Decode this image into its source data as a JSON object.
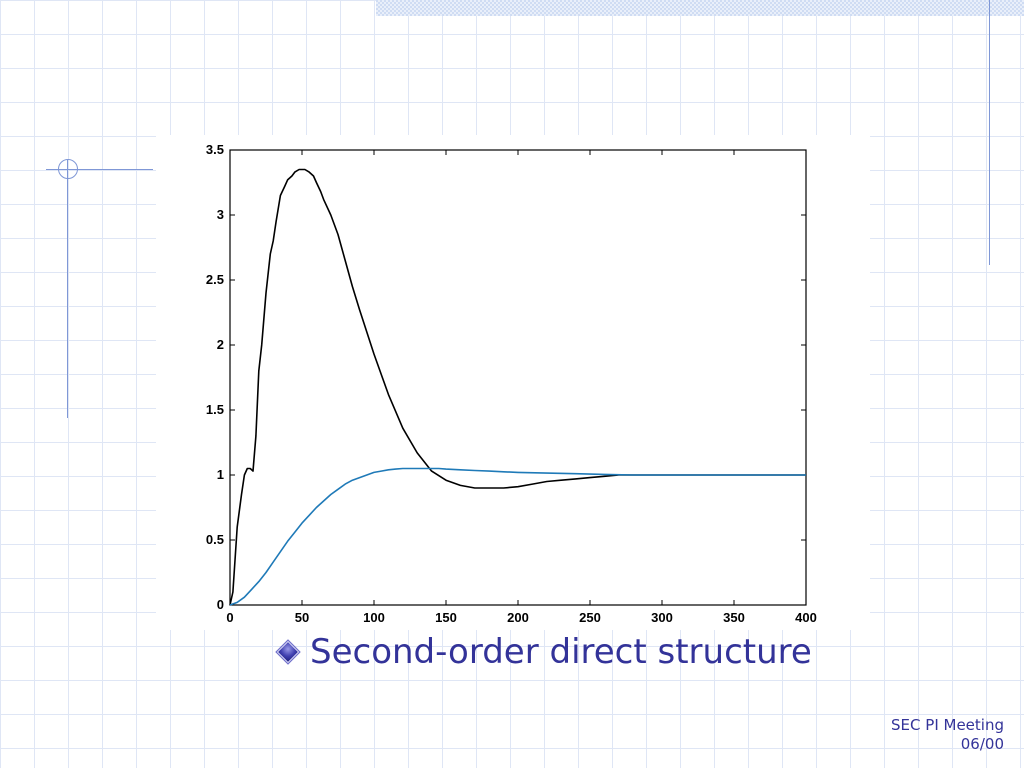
{
  "slide": {
    "bullet": "Second-order direct structure",
    "footer_line1": "SEC PI Meeting",
    "footer_line2": "06/00"
  },
  "chart_data": {
    "type": "line",
    "title": "",
    "xlabel": "",
    "ylabel": "",
    "xlim": [
      0,
      400
    ],
    "ylim": [
      0,
      3.5
    ],
    "xticks": [
      "0",
      "50",
      "100",
      "150",
      "200",
      "250",
      "300",
      "350",
      "400"
    ],
    "yticks": [
      "0",
      "0.5",
      "1",
      "1.5",
      "2",
      "2.5",
      "3",
      "3.5"
    ],
    "grid": false,
    "series": [
      {
        "color": "#000000",
        "x": [
          0,
          2,
          5,
          8,
          10,
          12,
          14,
          16,
          18,
          20,
          22,
          25,
          28,
          30,
          32,
          35,
          38,
          40,
          43,
          45,
          48,
          50,
          52,
          55,
          58,
          60,
          63,
          65,
          70,
          75,
          80,
          85,
          90,
          95,
          100,
          110,
          120,
          130,
          140,
          150,
          160,
          170,
          180,
          190,
          200,
          210,
          220,
          230,
          240,
          250,
          260,
          270,
          280,
          290,
          300,
          310,
          320,
          330,
          340,
          350,
          360,
          370,
          380,
          390,
          400
        ],
        "y": [
          0,
          0.1,
          0.6,
          0.85,
          1.0,
          1.05,
          1.05,
          1.03,
          1.3,
          1.8,
          2.0,
          2.4,
          2.7,
          2.8,
          2.95,
          3.15,
          3.22,
          3.27,
          3.3,
          3.33,
          3.35,
          3.35,
          3.35,
          3.33,
          3.3,
          3.25,
          3.18,
          3.12,
          3.0,
          2.85,
          2.65,
          2.45,
          2.27,
          2.1,
          1.93,
          1.62,
          1.36,
          1.17,
          1.03,
          0.96,
          0.92,
          0.9,
          0.9,
          0.9,
          0.91,
          0.93,
          0.95,
          0.96,
          0.97,
          0.98,
          0.99,
          1.0,
          1.0,
          1.0,
          1.0,
          1.0,
          1.0,
          1.0,
          1.0,
          1.0,
          1.0,
          1.0,
          1.0,
          1.0,
          1.0
        ]
      },
      {
        "color": "#1f7ab8",
        "x": [
          0,
          5,
          10,
          15,
          20,
          25,
          30,
          35,
          40,
          45,
          50,
          55,
          60,
          65,
          70,
          75,
          80,
          85,
          90,
          95,
          100,
          105,
          110,
          115,
          120,
          125,
          130,
          135,
          140,
          145,
          150,
          160,
          170,
          180,
          190,
          200,
          220,
          240,
          260,
          280,
          300,
          320,
          340,
          360,
          380,
          400
        ],
        "y": [
          0,
          0.02,
          0.06,
          0.12,
          0.18,
          0.25,
          0.33,
          0.41,
          0.49,
          0.56,
          0.63,
          0.69,
          0.75,
          0.8,
          0.85,
          0.89,
          0.93,
          0.96,
          0.98,
          1.0,
          1.02,
          1.03,
          1.04,
          1.045,
          1.05,
          1.05,
          1.05,
          1.05,
          1.05,
          1.05,
          1.045,
          1.04,
          1.035,
          1.03,
          1.025,
          1.02,
          1.015,
          1.01,
          1.005,
          1.0,
          1.0,
          1.0,
          1.0,
          1.0,
          1.0,
          1.0
        ]
      }
    ]
  }
}
